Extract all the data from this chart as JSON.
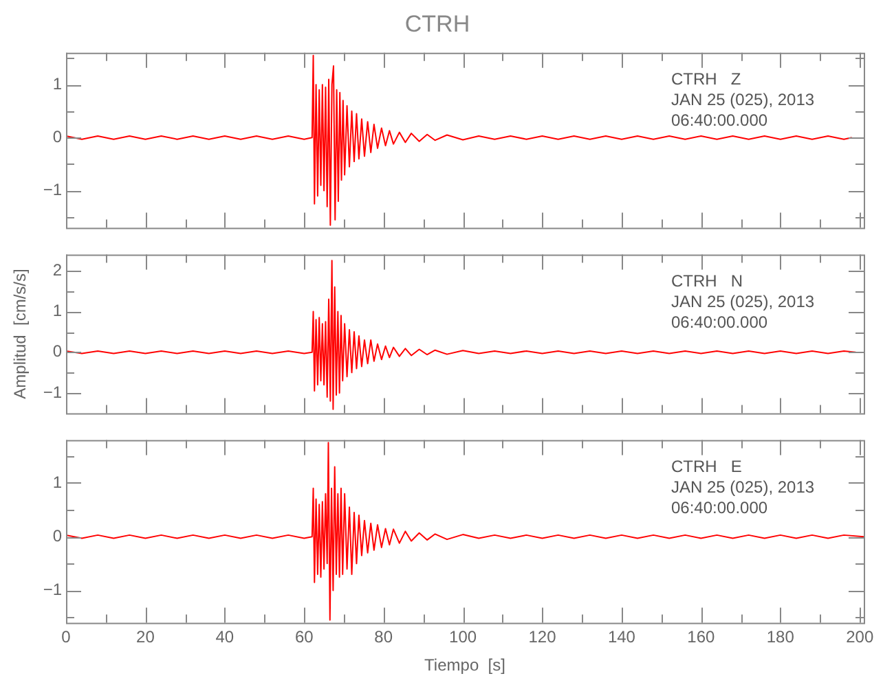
{
  "chart_data": [
    {
      "type": "line",
      "title": "CTRH",
      "tick_labels": "y",
      "grid": false,
      "xlim": [
        0,
        201
      ],
      "ylim": [
        -1.7,
        1.6
      ],
      "xticks": [
        0,
        {
          "value": 10,
          "label": null
        },
        20,
        {
          "value": 30,
          "label": null
        },
        40,
        {
          "value": 50,
          "label": null
        },
        60,
        {
          "value": 70,
          "label": null
        },
        80,
        {
          "value": 90,
          "label": null
        },
        100,
        {
          "value": 110,
          "label": null
        },
        120,
        {
          "value": 130,
          "label": null
        },
        140,
        {
          "value": 150,
          "label": null
        },
        160,
        {
          "value": 170,
          "label": null
        },
        180,
        {
          "value": 190,
          "label": null
        },
        200
      ],
      "yticks": [
        {
          "value": -1.5,
          "label": null
        },
        {
          "value": -1,
          "label": "−1"
        },
        {
          "value": -0.5,
          "label": null
        },
        0,
        {
          "value": 0.5,
          "label": null
        },
        1,
        {
          "value": 1.5,
          "label": null
        }
      ],
      "annotations": [
        "CTRH   Z",
        "JAN 25 (025), 2013",
        "06:40:00.000"
      ],
      "x": [
        0,
        4,
        8,
        12,
        16,
        20,
        24,
        28,
        32,
        36,
        40,
        44,
        48,
        52,
        56,
        60,
        62,
        62.3,
        62.6,
        63,
        63.4,
        63.8,
        64.2,
        64.6,
        65,
        65.4,
        65.8,
        66.2,
        66.6,
        67,
        67.4,
        67.8,
        68.2,
        68.6,
        69,
        69.4,
        69.8,
        70.2,
        70.8,
        71.4,
        72,
        72.6,
        73.2,
        73.8,
        74.5,
        75.2,
        76,
        76.8,
        77.6,
        78.5,
        79.5,
        80.5,
        81.5,
        82.5,
        84,
        85.5,
        87,
        89,
        91,
        93,
        96,
        100,
        104,
        108,
        112,
        116,
        120,
        124,
        128,
        132,
        136,
        140,
        144,
        148,
        152,
        156,
        160,
        164,
        168,
        172,
        176,
        180,
        184,
        188,
        192,
        196,
        198
      ],
      "series": [
        {
          "color": "#ff0000",
          "values": [
            0.03,
            -0.03,
            0.03,
            -0.03,
            0.03,
            -0.03,
            0.03,
            -0.03,
            0.03,
            -0.03,
            0.03,
            -0.03,
            0.03,
            -0.03,
            0.03,
            -0.03,
            0,
            1.55,
            -1.25,
            1.0,
            -1.1,
            0.9,
            -0.9,
            1.0,
            -1.0,
            0.95,
            -1.3,
            1.1,
            -1.65,
            1.0,
            1.35,
            -1.55,
            0.9,
            -1.2,
            0.85,
            -0.8,
            0.7,
            -0.7,
            0.6,
            -0.55,
            0.5,
            -0.45,
            0.45,
            -0.4,
            0.35,
            -0.35,
            0.3,
            -0.28,
            0.25,
            -0.2,
            0.18,
            -0.15,
            0.13,
            -0.12,
            0.1,
            -0.09,
            0.08,
            -0.07,
            0.06,
            -0.05,
            0.05,
            -0.04,
            0.03,
            -0.03,
            0.03,
            -0.03,
            0.03,
            -0.03,
            0.03,
            -0.03,
            0.03,
            -0.03,
            0.03,
            -0.03,
            0.03,
            -0.03,
            0.03,
            -0.03,
            0.03,
            -0.03,
            0.03,
            -0.03,
            0.03,
            -0.03,
            0.03,
            -0.03,
            0
          ]
        }
      ]
    },
    {
      "type": "line",
      "ylabel": "Amplitud  [cm/s/s]",
      "tick_labels": "y",
      "grid": false,
      "xlim": [
        0,
        201
      ],
      "ylim": [
        -1.5,
        2.4
      ],
      "xticks": [
        0,
        {
          "value": 10,
          "label": null
        },
        20,
        {
          "value": 30,
          "label": null
        },
        40,
        {
          "value": 50,
          "label": null
        },
        60,
        {
          "value": 70,
          "label": null
        },
        80,
        {
          "value": 90,
          "label": null
        },
        100,
        {
          "value": 110,
          "label": null
        },
        120,
        {
          "value": 130,
          "label": null
        },
        140,
        {
          "value": 150,
          "label": null
        },
        160,
        {
          "value": 170,
          "label": null
        },
        180,
        {
          "value": 190,
          "label": null
        },
        200
      ],
      "yticks": [
        {
          "value": -1,
          "label": "−1"
        },
        {
          "value": -0.5,
          "label": null
        },
        0,
        {
          "value": 0.5,
          "label": null
        },
        1,
        {
          "value": 1.5,
          "label": null
        },
        2
      ],
      "annotations": [
        "CTRH   N",
        "JAN 25 (025), 2013",
        "06:40:00.000"
      ],
      "x": [
        0,
        4,
        8,
        12,
        16,
        20,
        24,
        28,
        32,
        36,
        40,
        44,
        48,
        52,
        56,
        60,
        62,
        62.3,
        62.6,
        63,
        63.4,
        63.8,
        64.2,
        64.6,
        65,
        65.4,
        65.8,
        66.2,
        66.6,
        67,
        67.3,
        67.7,
        68.1,
        68.5,
        68.9,
        69.3,
        69.7,
        70.2,
        70.8,
        71.4,
        72,
        72.6,
        73.2,
        73.8,
        74.5,
        75.2,
        76,
        76.8,
        77.6,
        78.5,
        79.5,
        80.5,
        81.5,
        82.5,
        84,
        85.5,
        87,
        89,
        91,
        93,
        96,
        100,
        104,
        108,
        112,
        116,
        120,
        124,
        128,
        132,
        136,
        140,
        144,
        148,
        152,
        156,
        160,
        164,
        168,
        172,
        176,
        180,
        184,
        188,
        192,
        196,
        199
      ],
      "series": [
        {
          "color": "#ff0000",
          "values": [
            0.03,
            -0.03,
            0.03,
            -0.03,
            0.03,
            -0.03,
            0.03,
            -0.03,
            0.03,
            -0.03,
            0.03,
            -0.03,
            0.03,
            -0.03,
            0.03,
            -0.03,
            0,
            1.0,
            -0.95,
            0.8,
            -0.8,
            0.85,
            -0.7,
            0.7,
            -0.8,
            0.75,
            -1.1,
            1.3,
            -1.2,
            2.25,
            -1.4,
            1.6,
            -1.05,
            1.0,
            -1.0,
            0.9,
            -0.7,
            0.7,
            -0.6,
            0.55,
            -0.5,
            0.5,
            -0.4,
            0.4,
            -0.35,
            0.3,
            -0.28,
            0.3,
            -0.22,
            0.2,
            -0.18,
            0.15,
            -0.13,
            0.12,
            -0.1,
            0.09,
            -0.08,
            0.07,
            -0.06,
            0.05,
            -0.05,
            0.04,
            -0.03,
            0.03,
            -0.03,
            0.03,
            -0.03,
            0.03,
            -0.03,
            0.03,
            -0.03,
            0.03,
            -0.03,
            0.03,
            -0.03,
            0.03,
            -0.03,
            0.03,
            -0.03,
            0.03,
            -0.03,
            0.03,
            -0.03,
            0.03,
            -0.03,
            0.03,
            0
          ]
        }
      ]
    },
    {
      "type": "line",
      "xlabel": "Tiempo  [s]",
      "grid": false,
      "xlim": [
        0,
        201
      ],
      "ylim": [
        -1.6,
        1.8
      ],
      "xticks": [
        0,
        {
          "value": 10,
          "label": null
        },
        20,
        {
          "value": 30,
          "label": null
        },
        40,
        {
          "value": 50,
          "label": null
        },
        60,
        {
          "value": 70,
          "label": null
        },
        80,
        {
          "value": 90,
          "label": null
        },
        100,
        {
          "value": 110,
          "label": null
        },
        120,
        {
          "value": 130,
          "label": null
        },
        140,
        {
          "value": 150,
          "label": null
        },
        160,
        {
          "value": 170,
          "label": null
        },
        180,
        {
          "value": 190,
          "label": null
        },
        200
      ],
      "yticks": [
        {
          "value": -1.5,
          "label": null
        },
        {
          "value": -1,
          "label": "−1"
        },
        {
          "value": -0.5,
          "label": null
        },
        0,
        {
          "value": 0.5,
          "label": null
        },
        1,
        {
          "value": 1.5,
          "label": null
        }
      ],
      "annotations": [
        "CTRH   E",
        "JAN 25 (025), 2013",
        "06:40:00.000"
      ],
      "x": [
        0,
        4,
        8,
        12,
        16,
        20,
        24,
        28,
        32,
        36,
        40,
        44,
        48,
        52,
        56,
        60,
        62,
        62.3,
        62.6,
        63,
        63.4,
        63.8,
        64.2,
        64.6,
        65,
        65.4,
        65.8,
        66.1,
        66.5,
        66.9,
        67.3,
        67.7,
        68.1,
        68.5,
        68.9,
        69.3,
        69.7,
        70.2,
        70.8,
        71.4,
        72,
        72.6,
        73.2,
        73.8,
        74.5,
        75.2,
        76,
        76.8,
        77.6,
        78.5,
        79.5,
        80.5,
        81.5,
        82.5,
        84,
        85.5,
        87,
        89,
        91,
        93,
        96,
        100,
        104,
        108,
        112,
        116,
        120,
        124,
        128,
        132,
        136,
        140,
        144,
        148,
        152,
        156,
        160,
        164,
        168,
        172,
        176,
        180,
        184,
        188,
        192,
        196,
        201
      ],
      "series": [
        {
          "color": "#ff0000",
          "values": [
            0.03,
            -0.03,
            0.03,
            -0.03,
            0.03,
            -0.03,
            0.03,
            -0.03,
            0.03,
            -0.03,
            0.03,
            -0.03,
            0.03,
            -0.03,
            0.03,
            -0.03,
            0,
            0.9,
            -0.85,
            0.7,
            -0.7,
            0.6,
            -0.75,
            0.65,
            -0.6,
            0.8,
            -0.5,
            1.75,
            -1.55,
            0.9,
            -1.0,
            1.3,
            -0.7,
            0.8,
            -0.75,
            0.9,
            -0.7,
            0.8,
            -0.6,
            0.55,
            -0.7,
            0.45,
            -0.5,
            0.4,
            -0.35,
            0.3,
            -0.3,
            0.25,
            -0.25,
            0.22,
            -0.2,
            0.15,
            -0.15,
            0.14,
            -0.12,
            0.1,
            -0.08,
            0.07,
            -0.06,
            0.05,
            -0.05,
            0.04,
            -0.03,
            0.03,
            -0.03,
            0.03,
            -0.03,
            0.03,
            -0.03,
            0.03,
            -0.03,
            0.03,
            -0.03,
            0.03,
            -0.03,
            0.03,
            -0.03,
            0.03,
            -0.03,
            0.03,
            -0.03,
            0.03,
            -0.03,
            0.03,
            -0.03,
            0.03,
            0
          ]
        }
      ]
    }
  ]
}
